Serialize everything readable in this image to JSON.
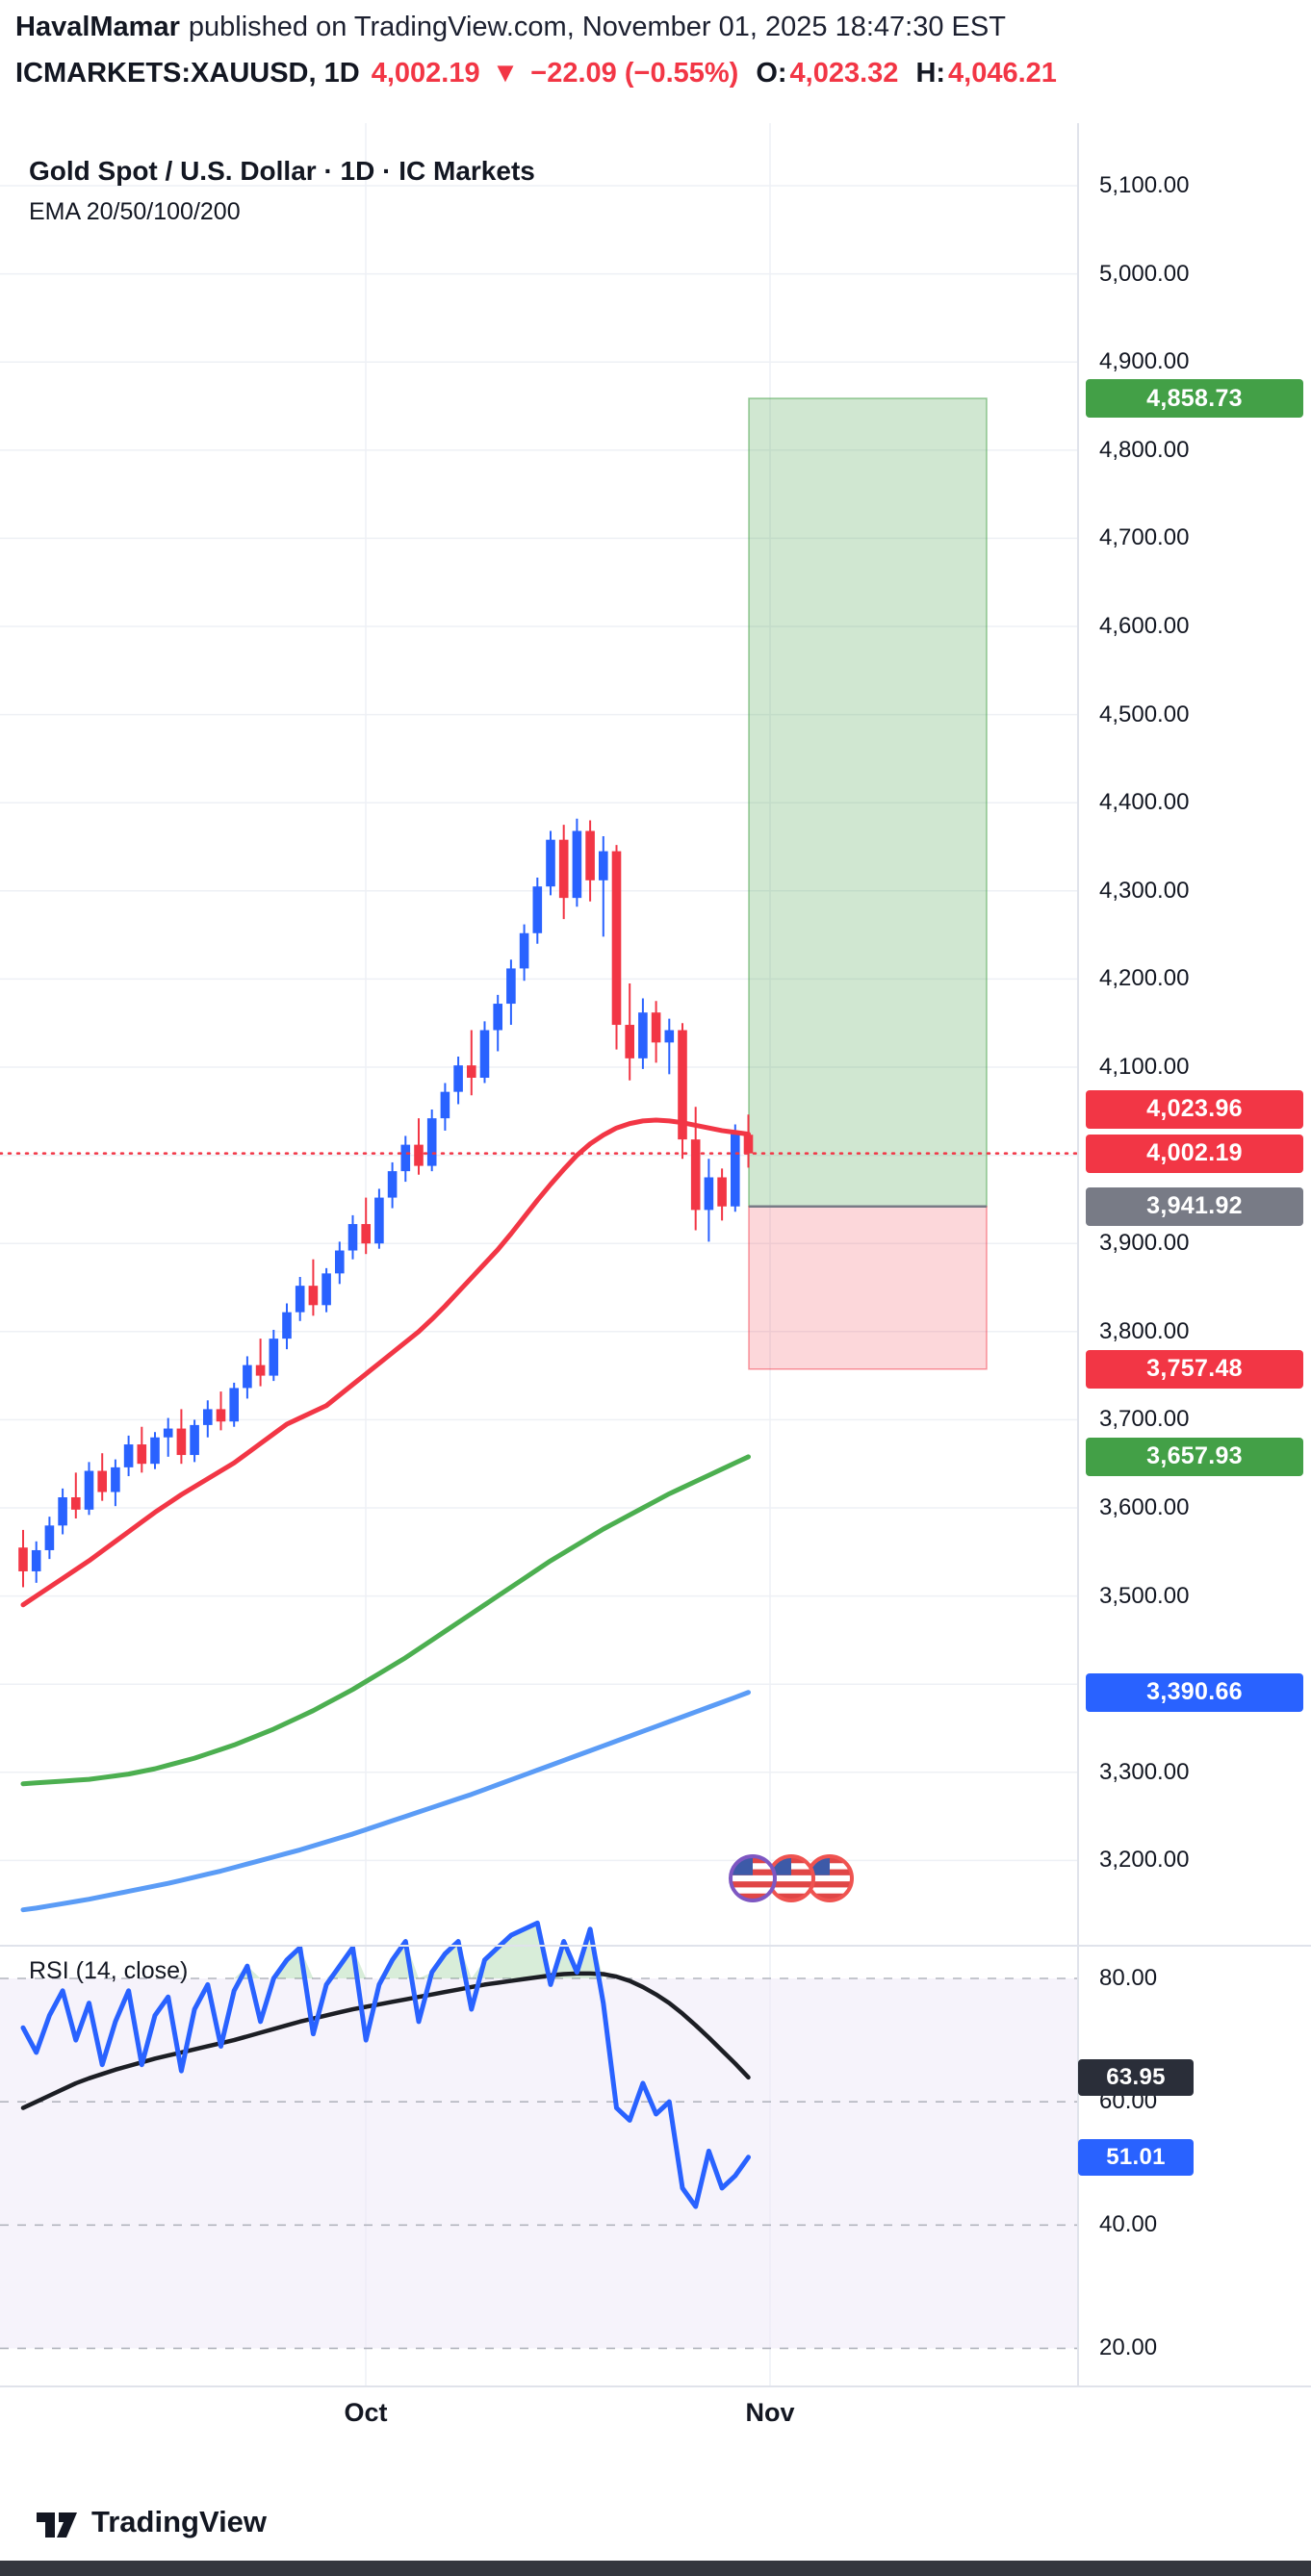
{
  "header": {
    "author": "HavalMamar",
    "published": "published on TradingView.com, November 01, 2025 18:47:30 EST",
    "symbol": "ICMARKETS:XAUUSD, 1D",
    "last_price": "4,002.19",
    "change_arrow": "▼",
    "change": "−22.09 (−0.55%)",
    "open_label": "O:",
    "open_value": "4,023.32",
    "high_label": "H:",
    "high_value": "4,046.21"
  },
  "chart": {
    "title": "Gold Spot / U.S. Dollar · 1D · IC Markets",
    "subtitle": "EMA 20/50/100/200",
    "colors": {
      "up_candle": "#2962ff",
      "down_candle": "#f23645",
      "ema_fast": "#f23645",
      "ema_100": "#4caf50",
      "ema_200": "#5b9cf6",
      "rsi_line": "#2962ff",
      "rsi_ma": "#1c1e24",
      "grid": "#eef0f5",
      "axis_text": "#131722",
      "current_price_line": "#f23645",
      "long_box_green": "#43a047",
      "long_box_red": "#f23645",
      "entry_line": "#787b86",
      "rsi_band_fill": "#efeaf8"
    },
    "y_axis_labels": [
      "5,100.00",
      "5,000.00",
      "4,900.00",
      "4,800.00",
      "4,700.00",
      "4,600.00",
      "4,500.00",
      "4,400.00",
      "4,300.00",
      "4,200.00",
      "4,100.00",
      "3,900.00",
      "3,800.00",
      "3,700.00",
      "3,600.00",
      "3,500.00",
      "3,300.00",
      "3,200.00"
    ],
    "price_badges": [
      {
        "label": "4,858.73",
        "price": 4858.73,
        "bg": "#43a047",
        "name": "target-price-label"
      },
      {
        "label": "4,023.96",
        "price": 4023.96,
        "bg": "#f23645",
        "name": "ema-fast-value-label"
      },
      {
        "label": "4,002.19",
        "price": 4002.19,
        "bg": "#f23645",
        "name": "last-price-label"
      },
      {
        "label": "3,941.92",
        "price": 3941.92,
        "bg": "#787b86",
        "name": "entry-price-label"
      },
      {
        "label": "3,757.48",
        "price": 3757.48,
        "bg": "#f23645",
        "name": "stop-price-label"
      },
      {
        "label": "3,657.93",
        "price": 3657.93,
        "bg": "#43a047",
        "name": "ema-100-value-label"
      },
      {
        "label": "3,390.66",
        "price": 3390.66,
        "bg": "#2962ff",
        "name": "ema-200-value-label"
      }
    ],
    "x_axis_labels": [
      {
        "label": "Oct"
      },
      {
        "label": "Nov"
      }
    ],
    "stickers": {
      "name": "us-flag-icon",
      "count": 3
    }
  },
  "rsi_panel": {
    "label": "RSI (14, close)",
    "ticks": [
      {
        "label": "80.00",
        "value": 80
      },
      {
        "label": "60.00",
        "value": 60
      },
      {
        "label": "40.00",
        "value": 40
      },
      {
        "label": "20.00",
        "value": 20
      }
    ],
    "badges": [
      {
        "label": "63.95",
        "value": 63.95,
        "bg": "#2a2e39",
        "name": "rsi-ma-value-label"
      },
      {
        "label": "51.01",
        "value": 51.01,
        "bg": "#2962ff",
        "name": "rsi-value-label"
      }
    ]
  },
  "chart_data": {
    "type": "candlestick",
    "title": "Gold Spot / U.S. Dollar · 1D · IC Markets",
    "symbol": "ICMARKETS:XAUUSD",
    "timeframe": "1D",
    "time_axis_labels": [
      "Oct",
      "Nov"
    ],
    "price_axis": {
      "min": 3140,
      "max": 5170,
      "gridline_step": 100
    },
    "current_price": 4002.19,
    "ohlc_last": {
      "open": 4023.32,
      "high": 4046.21,
      "close": 4002.19,
      "change": -22.09,
      "change_pct": -0.55
    },
    "candles_ohlc": [
      [
        3555,
        3575,
        3510,
        3528
      ],
      [
        3528,
        3562,
        3515,
        3552
      ],
      [
        3552,
        3590,
        3542,
        3580
      ],
      [
        3580,
        3622,
        3570,
        3612
      ],
      [
        3612,
        3640,
        3588,
        3598
      ],
      [
        3598,
        3652,
        3592,
        3642
      ],
      [
        3642,
        3662,
        3608,
        3618
      ],
      [
        3618,
        3655,
        3602,
        3646
      ],
      [
        3646,
        3682,
        3636,
        3672
      ],
      [
        3672,
        3692,
        3640,
        3650
      ],
      [
        3650,
        3686,
        3644,
        3680
      ],
      [
        3680,
        3702,
        3658,
        3690
      ],
      [
        3690,
        3712,
        3650,
        3660
      ],
      [
        3660,
        3700,
        3652,
        3694
      ],
      [
        3694,
        3722,
        3680,
        3712
      ],
      [
        3712,
        3732,
        3688,
        3698
      ],
      [
        3698,
        3742,
        3692,
        3736
      ],
      [
        3736,
        3772,
        3724,
        3762
      ],
      [
        3762,
        3792,
        3738,
        3750
      ],
      [
        3750,
        3802,
        3744,
        3792
      ],
      [
        3792,
        3832,
        3780,
        3822
      ],
      [
        3822,
        3862,
        3812,
        3852
      ],
      [
        3852,
        3882,
        3818,
        3830
      ],
      [
        3830,
        3872,
        3822,
        3866
      ],
      [
        3866,
        3902,
        3854,
        3892
      ],
      [
        3892,
        3932,
        3882,
        3922
      ],
      [
        3922,
        3952,
        3888,
        3900
      ],
      [
        3900,
        3962,
        3894,
        3952
      ],
      [
        3952,
        3992,
        3940,
        3982
      ],
      [
        3982,
        4022,
        3970,
        4012
      ],
      [
        4012,
        4042,
        3978,
        3988
      ],
      [
        3988,
        4052,
        3982,
        4042
      ],
      [
        4042,
        4082,
        4028,
        4072
      ],
      [
        4072,
        4112,
        4058,
        4102
      ],
      [
        4102,
        4142,
        4068,
        4088
      ],
      [
        4088,
        4152,
        4082,
        4142
      ],
      [
        4142,
        4182,
        4118,
        4172
      ],
      [
        4172,
        4222,
        4148,
        4212
      ],
      [
        4212,
        4262,
        4198,
        4252
      ],
      [
        4252,
        4315,
        4240,
        4305
      ],
      [
        4305,
        4368,
        4295,
        4358
      ],
      [
        4358,
        4375,
        4268,
        4292
      ],
      [
        4292,
        4382,
        4282,
        4368
      ],
      [
        4368,
        4380,
        4288,
        4312
      ],
      [
        4312,
        4362,
        4248,
        4345
      ],
      [
        4345,
        4352,
        4120,
        4148
      ],
      [
        4148,
        4195,
        4085,
        4110
      ],
      [
        4110,
        4178,
        4098,
        4162
      ],
      [
        4162,
        4175,
        4105,
        4128
      ],
      [
        4128,
        4155,
        4092,
        4142
      ],
      [
        4142,
        4150,
        3996,
        4018
      ],
      [
        4018,
        4055,
        3915,
        3938
      ],
      [
        3938,
        3996,
        3902,
        3975
      ],
      [
        3975,
        3985,
        3926,
        3942
      ],
      [
        3942,
        4035,
        3936,
        4024
      ],
      [
        4023.32,
        4046.21,
        3986,
        4002.19
      ]
    ],
    "ema_overlays": [
      {
        "name": "EMA fast",
        "color_key": "ema_fast",
        "last_value": 4023.96,
        "values": [
          3490,
          3500,
          3510,
          3520,
          3530,
          3540,
          3551,
          3562,
          3573,
          3584,
          3595,
          3605,
          3615,
          3624,
          3633,
          3642,
          3651,
          3662,
          3673,
          3684,
          3695,
          3702,
          3709,
          3716,
          3728,
          3740,
          3752,
          3764,
          3776,
          3788,
          3800,
          3814,
          3829,
          3845,
          3861,
          3877,
          3893,
          3911,
          3930,
          3949,
          3967,
          3984,
          4000,
          4013,
          4023,
          4031,
          4036,
          4039,
          4040,
          4039,
          4037,
          4034,
          4031,
          4028,
          4026,
          4023.96
        ]
      },
      {
        "name": "EMA 100",
        "color_key": "ema_100",
        "last_value": 3657.93,
        "values": [
          3287,
          3288,
          3289,
          3290,
          3291,
          3292,
          3294,
          3296,
          3298,
          3301,
          3304,
          3308,
          3312,
          3316,
          3321,
          3326,
          3331,
          3337,
          3343,
          3349,
          3356,
          3363,
          3370,
          3378,
          3386,
          3394,
          3403,
          3412,
          3421,
          3430,
          3440,
          3450,
          3460,
          3470,
          3480,
          3490,
          3500,
          3510,
          3520,
          3530,
          3540,
          3549,
          3558,
          3567,
          3576,
          3584,
          3592,
          3600,
          3608,
          3616,
          3623,
          3630,
          3637,
          3644,
          3651,
          3657.93
        ]
      },
      {
        "name": "EMA 200",
        "color_key": "ema_200",
        "last_value": 3390.66,
        "values": [
          3144,
          3146,
          3148.5,
          3151,
          3153.5,
          3156,
          3159,
          3162,
          3165,
          3168,
          3171,
          3174,
          3177.5,
          3181,
          3184.5,
          3188,
          3192,
          3196,
          3200,
          3204,
          3208,
          3212,
          3216.5,
          3221,
          3225.5,
          3230,
          3235,
          3240,
          3245,
          3250,
          3255,
          3260,
          3265,
          3270,
          3275,
          3280.5,
          3286,
          3291.5,
          3297,
          3302.5,
          3308,
          3313.5,
          3319,
          3324.5,
          3330,
          3335.5,
          3341,
          3346.5,
          3352,
          3357.5,
          3363,
          3368.5,
          3374,
          3379.5,
          3385,
          3390.66
        ]
      }
    ],
    "long_position": {
      "entry": 3941.92,
      "target": 4858.73,
      "stop": 3757.48
    },
    "rsi": {
      "name": "RSI (14, close)",
      "last": 51.01,
      "ma_last": 63.95,
      "overbought": 80,
      "oversold": 20,
      "values": [
        72,
        68,
        74,
        78,
        70,
        76,
        66,
        73,
        78,
        66,
        74,
        77,
        65,
        75,
        79,
        69,
        78,
        82,
        73,
        80,
        83,
        85,
        71,
        79,
        82,
        85,
        70,
        79,
        83,
        86,
        73,
        81,
        84,
        86,
        75,
        83,
        85,
        87,
        88,
        89,
        79,
        86,
        81,
        88,
        76,
        59,
        57,
        63,
        58,
        60,
        46,
        43,
        52,
        46,
        48,
        51.01
      ],
      "ma_values": [
        59,
        60,
        61,
        62,
        63,
        63.8,
        64.5,
        65.2,
        65.8,
        66.4,
        67,
        67.5,
        68,
        68.5,
        69,
        69.5,
        70,
        70.6,
        71.2,
        71.8,
        72.4,
        73,
        73.5,
        74,
        74.5,
        75,
        75.4,
        75.8,
        76.2,
        76.6,
        77,
        77.4,
        77.8,
        78.2,
        78.6,
        79,
        79.3,
        79.6,
        79.9,
        80.2,
        80.5,
        80.7,
        80.8,
        80.8,
        80.7,
        80.3,
        79.6,
        78.6,
        77.4,
        76,
        74.3,
        72.4,
        70.4,
        68.3,
        66.2,
        63.95
      ]
    }
  },
  "footer": {
    "brand": "TradingView"
  }
}
